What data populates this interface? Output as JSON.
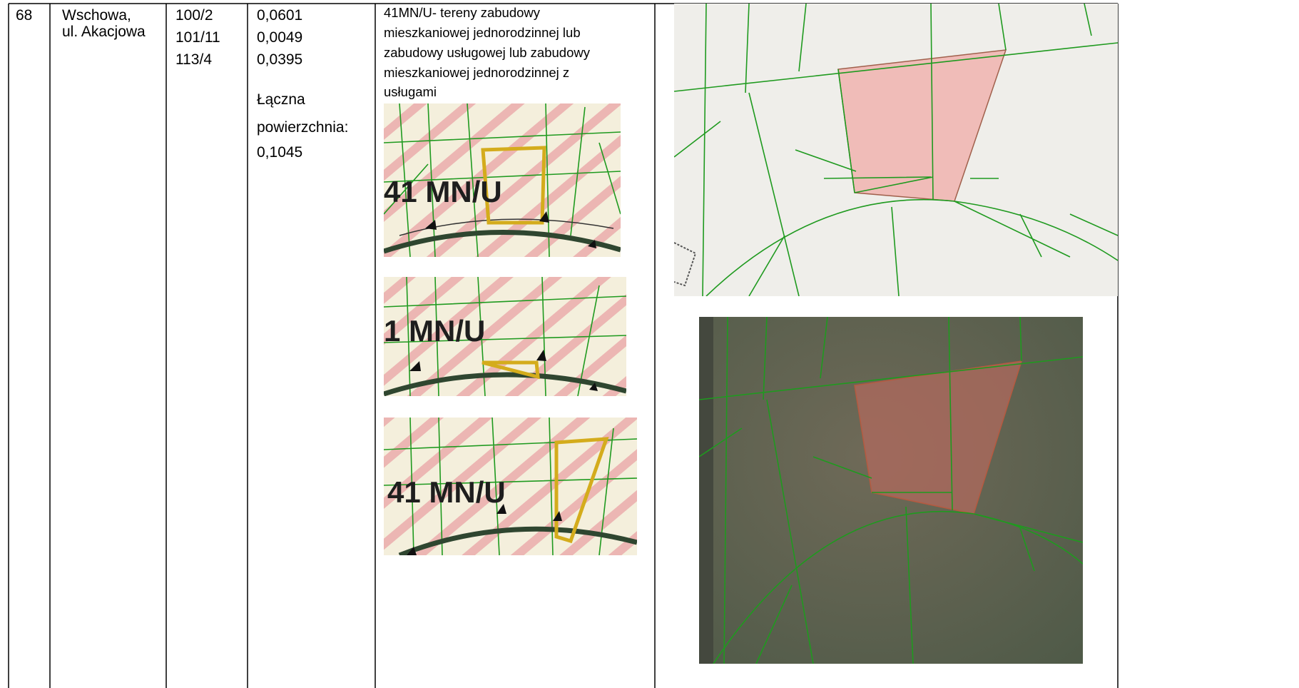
{
  "table": {
    "rows": [
      {
        "number": "68",
        "location": [
          "Wschowa,",
          "ul. Akacjowa"
        ],
        "parcels": [
          "100/2",
          "101/11",
          "113/4"
        ],
        "areas": [
          "0,0601",
          "0,0049",
          "0,0395"
        ],
        "total_label": [
          "Łączna",
          "powierzchnia:"
        ],
        "total": "0,1045",
        "description": [
          "41MN/U- tereny zabudowy",
          "mieszkaniowej jednorodzinnej lub",
          "zabudowy usługowej lub zabudowy",
          "mieszkaniowej jednorodzinnej z",
          "usługami"
        ],
        "plan_labels": [
          "41 MN/U",
          "1 MN/U",
          "41 MN/U"
        ]
      }
    ]
  }
}
